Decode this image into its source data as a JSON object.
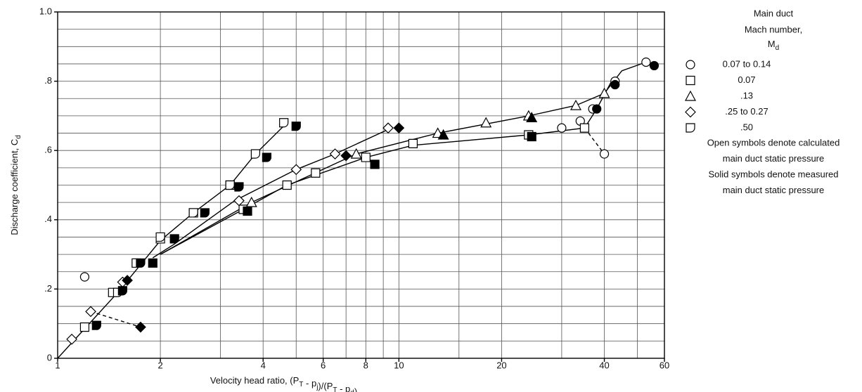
{
  "chart_data": {
    "type": "scatter",
    "xlabel": [
      "Velocity head ratio, (P",
      {
        "sub": "T"
      },
      " - p",
      {
        "sub": "j"
      },
      ")/(P",
      {
        "sub": "T"
      },
      " - p",
      {
        "sub": "d"
      },
      ")"
    ],
    "ylabel": [
      "Discharge coefficient, C",
      {
        "sub": "d"
      }
    ],
    "xscale": "log",
    "xlim": [
      1,
      60
    ],
    "ylim": [
      0,
      1.0
    ],
    "xticks": [
      1,
      2,
      4,
      6,
      8,
      10,
      20,
      40,
      60
    ],
    "yticks": [
      0,
      {
        "value": 0.2,
        "label": ".2"
      },
      {
        "value": 0.4,
        "label": ".4"
      },
      {
        "value": 0.6,
        "label": ".6"
      },
      {
        "value": 0.8,
        "label": ".8"
      },
      {
        "value": 1.0,
        "label": "1.0"
      }
    ],
    "grid": true,
    "xgrid": [
      3,
      5,
      7,
      9,
      15,
      30,
      50
    ],
    "ygrid": [
      0.05,
      0.1,
      0.15,
      0.25,
      0.3,
      0.35,
      0.45,
      0.5,
      0.55,
      0.65,
      0.7,
      0.75,
      0.85,
      0.9,
      0.95
    ],
    "legend_title": [
      "Main duct",
      "Mach number,",
      [
        "M",
        {
          "sub": "d"
        }
      ]
    ],
    "legend_notes": [
      "Open symbols denote calculated",
      "main duct static pressure",
      "Solid symbols denote measured",
      "main duct static pressure"
    ],
    "color": "#000000",
    "series": [
      {
        "name": "0.07 to 0.14",
        "marker": "circle",
        "x": [
          1.2,
          30,
          34,
          37,
          40,
          43,
          53,
          38,
          43,
          56
        ],
        "values": [
          0.235,
          0.665,
          0.685,
          0.72,
          0.59,
          0.8,
          0.855,
          0.72,
          0.79,
          0.845
        ],
        "filled": [
          false,
          false,
          false,
          false,
          false,
          false,
          false,
          true,
          true,
          true
        ]
      },
      {
        "name": "0.07",
        "marker": "square",
        "x": [
          1.2,
          1.45,
          1.7,
          2.0,
          2.5,
          3.2,
          3.5,
          4.7,
          5.7,
          8,
          11,
          24,
          35,
          1.9,
          3.6,
          8.5,
          24.5
        ],
        "values": [
          0.09,
          0.19,
          0.275,
          0.345,
          0.42,
          0.5,
          0.43,
          0.5,
          0.535,
          0.58,
          0.62,
          0.645,
          0.665,
          0.275,
          0.425,
          0.56,
          0.64
        ],
        "filled": [
          false,
          false,
          false,
          false,
          false,
          false,
          false,
          false,
          false,
          false,
          false,
          false,
          false,
          true,
          true,
          true,
          true
        ]
      },
      {
        "name": ".13",
        "marker": "triangle",
        "x": [
          3.7,
          7.5,
          13,
          18,
          24,
          33,
          40,
          13.5,
          24.5
        ],
        "values": [
          0.45,
          0.59,
          0.65,
          0.68,
          0.7,
          0.73,
          0.765,
          0.645,
          0.695
        ],
        "filled": [
          false,
          false,
          false,
          false,
          false,
          false,
          false,
          true,
          true
        ]
      },
      {
        "name": ".25 to 0.27",
        "marker": "diamond",
        "x": [
          1.1,
          1.25,
          1.55,
          3.4,
          5,
          6.5,
          9.3,
          1.6,
          1.75,
          7,
          10
        ],
        "values": [
          0.055,
          0.135,
          0.22,
          0.455,
          0.545,
          0.59,
          0.665,
          0.225,
          0.09,
          0.585,
          0.665
        ],
        "filled": [
          false,
          false,
          false,
          false,
          false,
          false,
          false,
          true,
          true,
          true,
          true
        ]
      },
      {
        "name": ".50",
        "marker": "dshape",
        "x": [
          1.5,
          2.0,
          2.5,
          3.2,
          3.8,
          4.6,
          1.3,
          1.55,
          1.75,
          2.2,
          2.7,
          3.4,
          4.1,
          5.0
        ],
        "values": [
          0.19,
          0.35,
          0.42,
          0.5,
          0.59,
          0.68,
          0.095,
          0.195,
          0.275,
          0.345,
          0.42,
          0.495,
          0.58,
          0.67
        ],
        "filled": [
          false,
          false,
          false,
          false,
          false,
          false,
          true,
          true,
          true,
          true,
          true,
          true,
          true,
          true
        ]
      }
    ],
    "curves": [
      {
        "style": "solid",
        "x": [
          1,
          1.5,
          2.0,
          2.5,
          3.2,
          3.8,
          4.7
        ],
        "values": [
          0,
          0.19,
          0.34,
          0.42,
          0.5,
          0.59,
          0.68
        ]
      },
      {
        "style": "solid",
        "x": [
          1.9,
          2.2,
          3.3,
          5,
          6.5,
          9.5
        ],
        "values": [
          0.29,
          0.33,
          0.455,
          0.545,
          0.59,
          0.665
        ]
      },
      {
        "style": "solid",
        "x": [
          2.0,
          3.7,
          7.5,
          13,
          24,
          33,
          40,
          45,
          53,
          56
        ],
        "values": [
          0.3,
          0.45,
          0.59,
          0.65,
          0.7,
          0.73,
          0.765,
          0.83,
          0.855,
          0.848
        ]
      },
      {
        "style": "solid",
        "x": [
          2.0,
          3.5,
          4.7,
          8,
          11,
          24,
          35,
          38,
          42
        ],
        "values": [
          0.3,
          0.43,
          0.5,
          0.58,
          0.615,
          0.645,
          0.665,
          0.72,
          0.8
        ]
      },
      {
        "style": "dashed",
        "x": [
          1.25,
          1.75
        ],
        "values": [
          0.135,
          0.09
        ]
      },
      {
        "style": "dashed",
        "x": [
          35,
          40
        ],
        "values": [
          0.665,
          0.59
        ]
      }
    ]
  }
}
